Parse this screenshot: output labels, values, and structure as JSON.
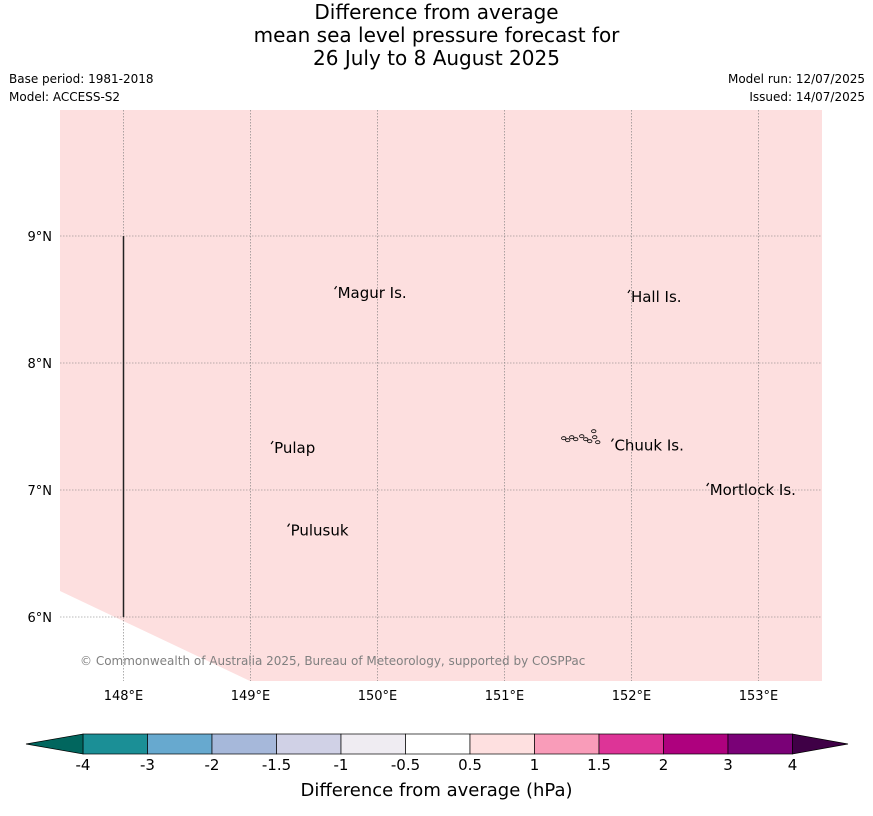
{
  "title": {
    "line1": "Difference from average",
    "line2": "mean sea level pressure forecast for",
    "line3": "26 July to 8 August 2025"
  },
  "meta": {
    "base_period": "Base period: 1981-2018",
    "model": "Model: ACCESS-S2",
    "model_run": "Model run: 12/07/2025",
    "issued": "Issued: 14/07/2025"
  },
  "map": {
    "extent": {
      "lon_min": 147.5,
      "lon_max": 153.5,
      "lat_min": 5.5,
      "lat_max": 10.0
    },
    "fill_color": "#fddfdf",
    "lon_ticks": [
      148,
      149,
      150,
      151,
      152,
      153
    ],
    "lon_tick_labels": [
      "148°E",
      "149°E",
      "150°E",
      "151°E",
      "152°E",
      "153°E"
    ],
    "lat_ticks": [
      6,
      7,
      8,
      9
    ],
    "lat_tick_labels": [
      "6°N",
      "7°N",
      "8°N",
      "9°N"
    ],
    "grid": true,
    "places": [
      {
        "name": "Magur Is.",
        "lon": 149.67,
        "lat": 8.55
      },
      {
        "name": "Hall Is.",
        "lon": 151.98,
        "lat": 8.52
      },
      {
        "name": "Pulap",
        "lon": 149.17,
        "lat": 7.33
      },
      {
        "name": "Chuuk Is.",
        "lon": 151.85,
        "lat": 7.35
      },
      {
        "name": "Mortlock Is.",
        "lon": 152.6,
        "lat": 7.0
      },
      {
        "name": "Pulusuk",
        "lon": 149.3,
        "lat": 6.68
      }
    ],
    "copyright": "© Commonwealth of Australia 2025, Bureau of Meteorology, supported by COSPPac"
  },
  "colorbar": {
    "label": "Difference from average (hPa)",
    "ticks": [
      "-4",
      "-3",
      "-2",
      "-1.5",
      "-1",
      "-0.5",
      "0.5",
      "1",
      "1.5",
      "2",
      "3",
      "4"
    ],
    "low_extend_color": "#01665e",
    "high_extend_color": "#3f0046",
    "colors": [
      "#1b8f96",
      "#67a9cf",
      "#a6b8da",
      "#d0d1e6",
      "#efecf2",
      "#ffffff",
      "#fee0e0",
      "#f99cb9",
      "#dd3497",
      "#ae017e",
      "#7a0177"
    ]
  }
}
